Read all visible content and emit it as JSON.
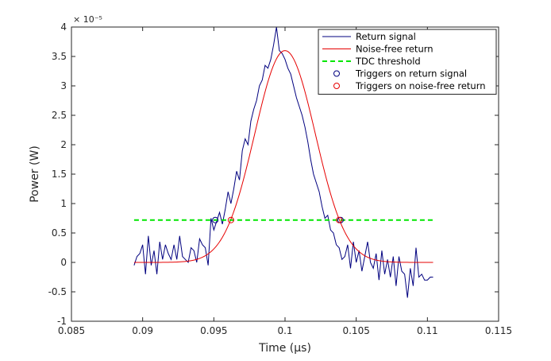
{
  "chart_data": {
    "type": "line",
    "xlabel": "Time (μs)",
    "ylabel": "Power (W)",
    "y_exponent_label": "× 10⁻⁵",
    "xlim": [
      0.085,
      0.115
    ],
    "ylim": [
      -1e-05,
      4e-05
    ],
    "grid": false,
    "legend_position": "top-right",
    "x_ticks": [
      0.085,
      0.09,
      0.095,
      0.1,
      0.105,
      0.11,
      0.115
    ],
    "x_tick_labels": [
      "0.085",
      "0.09",
      "0.095",
      "0.1",
      "0.105",
      "0.11",
      "0.115"
    ],
    "y_ticks": [
      -1e-05,
      -5e-06,
      0,
      5e-06,
      1e-05,
      1.5e-05,
      2e-05,
      2.5e-05,
      3e-05,
      3.5e-05,
      4e-05
    ],
    "y_tick_labels": [
      "-1",
      "-0.5",
      "0",
      "0.5",
      "1",
      "1.5",
      "2",
      "2.5",
      "3",
      "3.5",
      "4"
    ],
    "series": [
      {
        "name": "Return signal",
        "kind": "line",
        "color": "#00007f",
        "x": [
          0.0894,
          0.0896,
          0.0898,
          0.09,
          0.0902,
          0.0904,
          0.0906,
          0.0908,
          0.091,
          0.0912,
          0.0914,
          0.0916,
          0.0918,
          0.092,
          0.0922,
          0.0924,
          0.0926,
          0.0928,
          0.093,
          0.0932,
          0.0934,
          0.0936,
          0.0938,
          0.094,
          0.0942,
          0.0944,
          0.0946,
          0.0948,
          0.095,
          0.0952,
          0.0954,
          0.0956,
          0.0958,
          0.096,
          0.0962,
          0.0964,
          0.0966,
          0.0968,
          0.097,
          0.0972,
          0.0974,
          0.0976,
          0.0978,
          0.098,
          0.0982,
          0.0984,
          0.0986,
          0.0988,
          0.099,
          0.0992,
          0.0994,
          0.0996,
          0.0998,
          0.1,
          0.1002,
          0.1004,
          0.1006,
          0.1008,
          0.101,
          0.1012,
          0.1014,
          0.1016,
          0.1018,
          0.102,
          0.1022,
          0.1024,
          0.1026,
          0.1028,
          0.103,
          0.1032,
          0.1034,
          0.1036,
          0.1038,
          0.104,
          0.1042,
          0.1044,
          0.1046,
          0.1048,
          0.105,
          0.1052,
          0.1054,
          0.1056,
          0.1058,
          0.106,
          0.1062,
          0.1064,
          0.1066,
          0.1068,
          0.107,
          0.1072,
          0.1074,
          0.1076,
          0.1078,
          0.108,
          0.1082,
          0.1084,
          0.1086,
          0.1088,
          0.109,
          0.1092,
          0.1094,
          0.1096,
          0.1098,
          0.11,
          0.1102,
          0.1104
        ],
        "y": [
          -5e-07,
          1e-06,
          1.5e-06,
          3e-06,
          -2e-06,
          4.5e-06,
          -5e-07,
          2e-06,
          -2e-06,
          3.5e-06,
          5e-07,
          3e-06,
          1.5e-06,
          5e-07,
          3e-06,
          5e-07,
          4.5e-06,
          1e-06,
          5e-07,
          0.0,
          2.5e-06,
          2e-06,
          0.0,
          4e-06,
          3e-06,
          2.5e-06,
          -5e-07,
          7.5e-06,
          5.5e-06,
          7e-06,
          8.5e-06,
          6.5e-06,
          9e-06,
          1.2e-05,
          1e-05,
          1.25e-05,
          1.55e-05,
          1.4e-05,
          1.9e-05,
          2.1e-05,
          2e-05,
          2.4e-05,
          2.6e-05,
          2.75e-05,
          3e-05,
          3.1e-05,
          3.35e-05,
          3.3e-05,
          3.45e-05,
          3.7e-05,
          4e-05,
          3.6e-05,
          3.55e-05,
          3.45e-05,
          3.3e-05,
          3.2e-05,
          3e-05,
          2.8e-05,
          2.65e-05,
          2.5e-05,
          2.3e-05,
          2.05e-05,
          1.75e-05,
          1.5e-05,
          1.35e-05,
          1.2e-05,
          9.5e-06,
          7.5e-06,
          8e-06,
          5.5e-06,
          5e-06,
          3e-06,
          2.5e-06,
          5e-07,
          1e-06,
          3e-06,
          -1e-06,
          3.5e-06,
          0.0,
          2e-06,
          -1.5e-06,
          1e-06,
          3.5e-06,
          0.0,
          -1e-06,
          1.5e-06,
          -3e-06,
          2e-06,
          -2e-06,
          5e-07,
          -2.5e-06,
          1e-06,
          -4e-06,
          1e-06,
          -1.5e-06,
          -2e-06,
          -6e-06,
          -1e-06,
          -4e-06,
          2.5e-06,
          -2.5e-06,
          -2e-06,
          -3e-06,
          -3e-06,
          -2.5e-06,
          -2.5e-06
        ]
      },
      {
        "name": "Noise-free return",
        "kind": "gaussian",
        "color": "#e60000",
        "x_range": [
          0.0894,
          0.1104
        ],
        "peak": 3.6e-05,
        "center": 0.1,
        "sigma": 0.00213
      },
      {
        "name": "TDC threshold",
        "kind": "hline",
        "color": "#00e600",
        "x_range": [
          0.0894,
          0.1104
        ],
        "y": 7.2e-06
      },
      {
        "name": "Triggers on return signal",
        "kind": "markers",
        "color": "#00007f",
        "x": [
          0.0951,
          0.1039
        ],
        "y": [
          7.2e-06,
          7.2e-06
        ]
      },
      {
        "name": "Triggers on noise-free return",
        "kind": "markers",
        "color": "#e60000",
        "x": [
          0.0962,
          0.1038
        ],
        "y": [
          7.2e-06,
          7.2e-06
        ]
      }
    ]
  }
}
